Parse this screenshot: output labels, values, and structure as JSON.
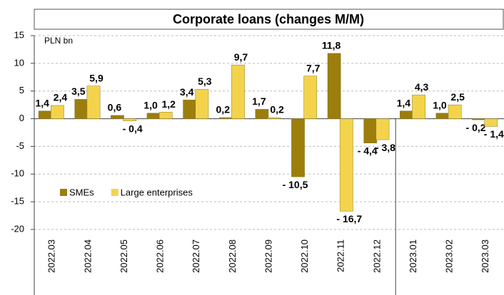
{
  "chart_data": {
    "type": "bar",
    "title": "Corporate loans (changes M/M)",
    "y_label": "PLN bn",
    "categories": [
      "2022.03",
      "2022.04",
      "2022.05",
      "2022.06",
      "2022.07",
      "2022.08",
      "2022.09",
      "2022.10",
      "2022.11",
      "2022.12",
      "2023.01",
      "2023.02",
      "2023.03"
    ],
    "series": [
      {
        "name": "SMEs",
        "color": "#9c7e0c",
        "values": [
          1.4,
          3.5,
          0.6,
          1.0,
          3.4,
          0.2,
          1.7,
          -10.5,
          11.8,
          -4.4,
          1.4,
          1.0,
          -0.2
        ],
        "value_labels": [
          "1,4",
          "3,5",
          "0,6",
          "1,0",
          "3,4",
          "0,2",
          "1,7",
          "- 10,5",
          "11,8",
          "- 4,4",
          "1,4",
          "1,0",
          "- 0,2"
        ]
      },
      {
        "name": "Large enterprises",
        "color": "#f4d34c",
        "values": [
          2.4,
          5.9,
          -0.4,
          1.2,
          5.3,
          9.7,
          0.2,
          7.7,
          -16.7,
          -3.8,
          4.3,
          2.5,
          -1.4
        ],
        "value_labels": [
          "2,4",
          "5,9",
          "- 0,4",
          "1,2",
          "5,3",
          "9,7",
          "0,2",
          "7,7",
          "- 16,7",
          "- 3,8",
          "4,3",
          "2,5",
          "- 1,4"
        ]
      }
    ],
    "ylim": [
      -20,
      15
    ],
    "yticks": [
      15,
      10,
      5,
      0,
      -5,
      -10,
      -15,
      -20
    ],
    "grid": true,
    "legend": "left"
  }
}
